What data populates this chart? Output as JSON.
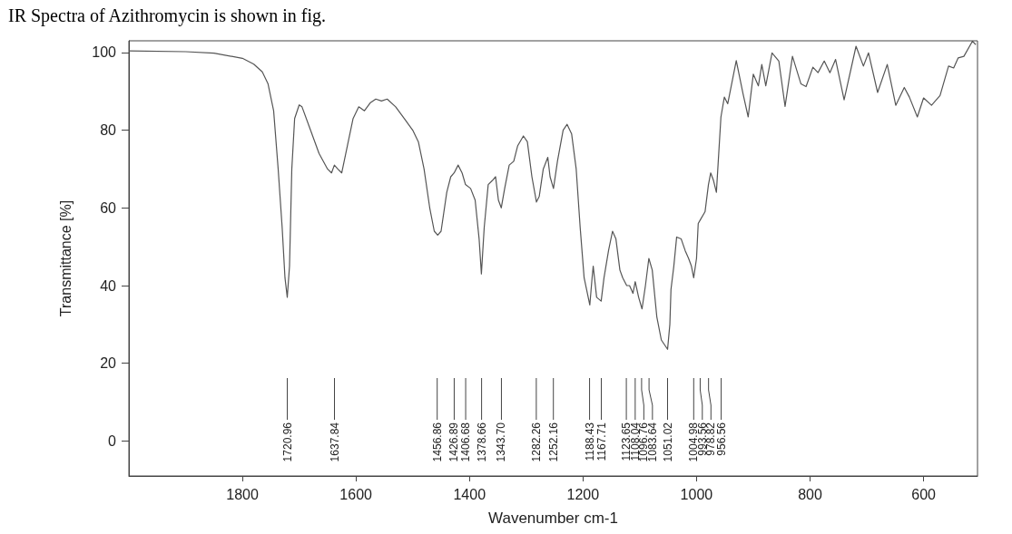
{
  "chart_data": {
    "type": "line",
    "title": "IR Spectra of Azithromycin is shown in fig.",
    "xlabel": "Wavenumber cm-1",
    "ylabel": "Transmittance [%]",
    "color": "#555555",
    "marker": "none",
    "grid": false,
    "xlim": [
      2000,
      505
    ],
    "xticks": [
      1800,
      1600,
      1400,
      1200,
      1000,
      800,
      600
    ],
    "ylim": [
      -9,
      103
    ],
    "yticks": [
      0,
      20,
      40,
      60,
      80,
      100
    ],
    "x": [
      2000,
      1900,
      1850,
      1800,
      1780,
      1765,
      1755,
      1745,
      1737,
      1730,
      1725,
      1721,
      1717,
      1713,
      1708,
      1700,
      1695,
      1680,
      1665,
      1650,
      1643,
      1638,
      1632,
      1625,
      1615,
      1605,
      1595,
      1585,
      1575,
      1565,
      1555,
      1545,
      1530,
      1515,
      1500,
      1490,
      1480,
      1470,
      1462,
      1456,
      1450,
      1440,
      1433,
      1427,
      1420,
      1413,
      1407,
      1398,
      1390,
      1383,
      1379,
      1374,
      1367,
      1360,
      1354,
      1349,
      1344,
      1338,
      1330,
      1322,
      1315,
      1305,
      1298,
      1290,
      1282,
      1277,
      1270,
      1262,
      1258,
      1252,
      1245,
      1235,
      1228,
      1220,
      1212,
      1205,
      1198,
      1188,
      1184,
      1182,
      1176,
      1168,
      1163,
      1155,
      1148,
      1142,
      1135,
      1130,
      1123,
      1118,
      1112,
      1108,
      1102,
      1096,
      1090,
      1084,
      1078,
      1070,
      1062,
      1051,
      1047,
      1045,
      1040,
      1035,
      1027,
      1020,
      1014,
      1009,
      1005,
      1000,
      997,
      993,
      985,
      979,
      975,
      970,
      965,
      957,
      951,
      945,
      930,
      918,
      909,
      900,
      891,
      885,
      878,
      867,
      855,
      844,
      831,
      816,
      807,
      795,
      786,
      775,
      765,
      755,
      740,
      719,
      706,
      697,
      681,
      664,
      649,
      634,
      625,
      611,
      600,
      586,
      571,
      556,
      547,
      539,
      529,
      514,
      508
    ],
    "values": [
      100.4,
      100.2,
      99.8,
      98.5,
      97,
      95,
      92,
      85,
      70,
      55,
      42,
      37,
      45,
      70,
      83,
      86.5,
      86,
      80,
      74,
      70,
      69,
      71,
      70,
      69,
      76,
      83,
      86,
      85,
      87,
      88,
      87.5,
      88,
      86,
      83,
      80,
      77,
      70,
      60,
      54,
      53,
      54,
      64,
      68,
      69,
      71,
      69,
      66,
      65,
      62,
      52,
      43,
      55,
      66,
      67,
      68,
      62,
      60,
      65,
      71,
      72,
      76,
      78.5,
      77,
      68,
      61.5,
      63,
      70,
      73,
      68,
      65,
      72,
      80,
      81.5,
      79,
      70,
      55,
      42,
      35,
      42,
      45,
      37,
      36,
      42,
      49,
      54,
      52,
      44,
      42,
      40,
      40,
      38,
      41,
      37,
      34,
      40,
      47,
      44,
      32,
      26,
      23.6,
      30,
      39,
      45,
      52.5,
      52,
      49,
      47,
      45,
      42,
      47,
      56,
      57,
      59,
      66,
      69,
      67,
      64,
      83.4,
      88.5,
      86.8,
      97.9,
      89.3,
      83.4,
      94.4,
      91.4,
      96.9,
      91.4,
      99.9,
      97.8,
      86.1,
      99,
      91.9,
      91.2,
      96.2,
      94.8,
      97.8,
      94.8,
      98.2,
      87.8,
      101.6,
      96.5,
      99.9,
      89.7,
      96.9,
      86.4,
      91,
      88.5,
      83.4,
      88.3,
      86.4,
      88.9,
      96.5,
      96,
      98.6,
      99,
      102.9,
      102
    ],
    "ref_lines": [
      {
        "axis": "x",
        "value": 1720.96,
        "label": "1720.96"
      },
      {
        "axis": "x",
        "value": 1637.84,
        "label": "1637.84"
      },
      {
        "axis": "x",
        "value": 1456.86,
        "label": "1456.86"
      },
      {
        "axis": "x",
        "value": 1426.89,
        "label": "1426.89"
      },
      {
        "axis": "x",
        "value": 1406.68,
        "label": "1406.68"
      },
      {
        "axis": "x",
        "value": 1378.66,
        "label": "1378.66"
      },
      {
        "axis": "x",
        "value": 1343.7,
        "label": "1343.70"
      },
      {
        "axis": "x",
        "value": 1282.26,
        "label": "1282.26"
      },
      {
        "axis": "x",
        "value": 1252.16,
        "label": "1252.16"
      },
      {
        "axis": "x",
        "value": 1188.43,
        "label": "1188.43"
      },
      {
        "axis": "x",
        "value": 1167.71,
        "label": "1167.71"
      },
      {
        "axis": "x",
        "value": 1123.65,
        "label": "1123.65"
      },
      {
        "axis": "x",
        "value": 1108.04,
        "label": "1108.04"
      },
      {
        "axis": "x",
        "value": 1096.76,
        "label": "1096.76"
      },
      {
        "axis": "x",
        "value": 1083.64,
        "label": "1083.64"
      },
      {
        "axis": "x",
        "value": 1051.02,
        "label": "1051.02"
      },
      {
        "axis": "x",
        "value": 1004.98,
        "label": "1004.98"
      },
      {
        "axis": "x",
        "value": 993.56,
        "label": "993.56"
      },
      {
        "axis": "x",
        "value": 978.82,
        "label": "978.82"
      },
      {
        "axis": "x",
        "value": 956.56,
        "label": "956.56"
      }
    ]
  }
}
